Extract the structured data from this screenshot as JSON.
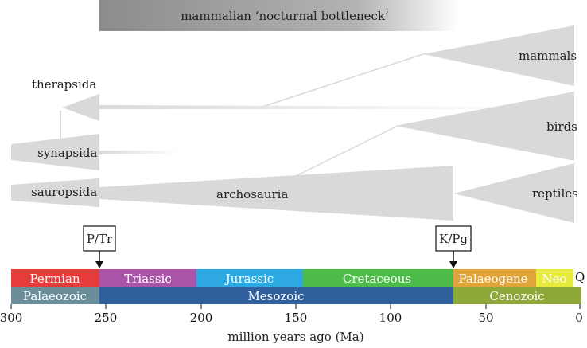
{
  "banner": {
    "text": "mammalian ‘nocturnal bottleneck’"
  },
  "lineages": {
    "therapsida": "therapsida",
    "synapsida": "synapsida",
    "sauropsida": "sauropsida",
    "archosauria": "archosauria",
    "mammals": "mammals",
    "birds": "birds",
    "reptiles": "reptiles"
  },
  "events": {
    "ptr": "P/Tr",
    "kpg": "K/Pg"
  },
  "periods": {
    "permian": "Permian",
    "triassic": "Triassic",
    "jurassic": "Jurassic",
    "cretaceous": "Cretaceous",
    "palaeogene": "Palaeogene",
    "neo": "Neo",
    "q": "Q"
  },
  "eras": {
    "palaeozoic": "Palaeozoic",
    "mesozoic": "Mesozoic",
    "cenozoic": "Cenozoic"
  },
  "axis": {
    "ticks": [
      "300",
      "250",
      "200",
      "150",
      "100",
      "50",
      "0"
    ],
    "label": "million years ago (Ma)"
  },
  "colors": {
    "permian": "#e53b3b",
    "triassic": "#a855a8",
    "jurassic": "#2ea8e0",
    "cretaceous": "#4dbb4a",
    "palaeogene": "#e0a43a",
    "neo": "#e8ea3c",
    "palaeozoic": "#6a8f9b",
    "mesozoic": "#2f5f9c",
    "cenozoic": "#8fa83a",
    "clade": "#d9d9d9"
  }
}
